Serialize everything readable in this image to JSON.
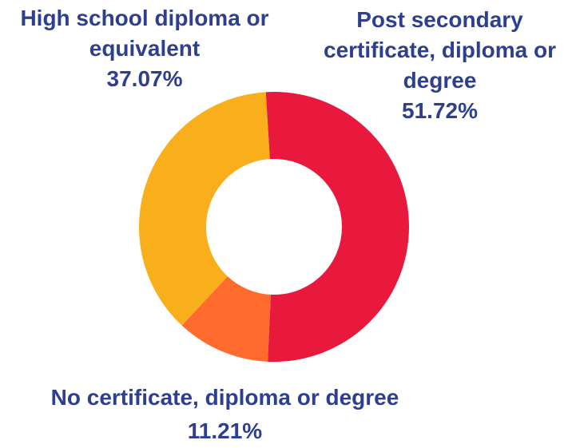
{
  "chart_data": {
    "type": "pie",
    "slices": [
      {
        "name": "Post secondary certificate, diploma or degree",
        "value": 51.72,
        "color": "#E8193C",
        "label_lines": [
          "Post secondary",
          "certificate, diploma or",
          "degree"
        ],
        "pct_label": "51.72%"
      },
      {
        "name": "No certificate, diploma or degree",
        "value": 11.21,
        "color": "#FF6B2C",
        "label_lines": [
          "No certificate, diploma or degree"
        ],
        "pct_label": "11.21%"
      },
      {
        "name": "High school diploma or equivalent",
        "value": 37.07,
        "color": "#F9AE1B",
        "label_lines": [
          "High school diploma or",
          "equivalent"
        ],
        "pct_label": "37.07%"
      }
    ],
    "legend": "none",
    "label_color": "#2E3F8F"
  }
}
